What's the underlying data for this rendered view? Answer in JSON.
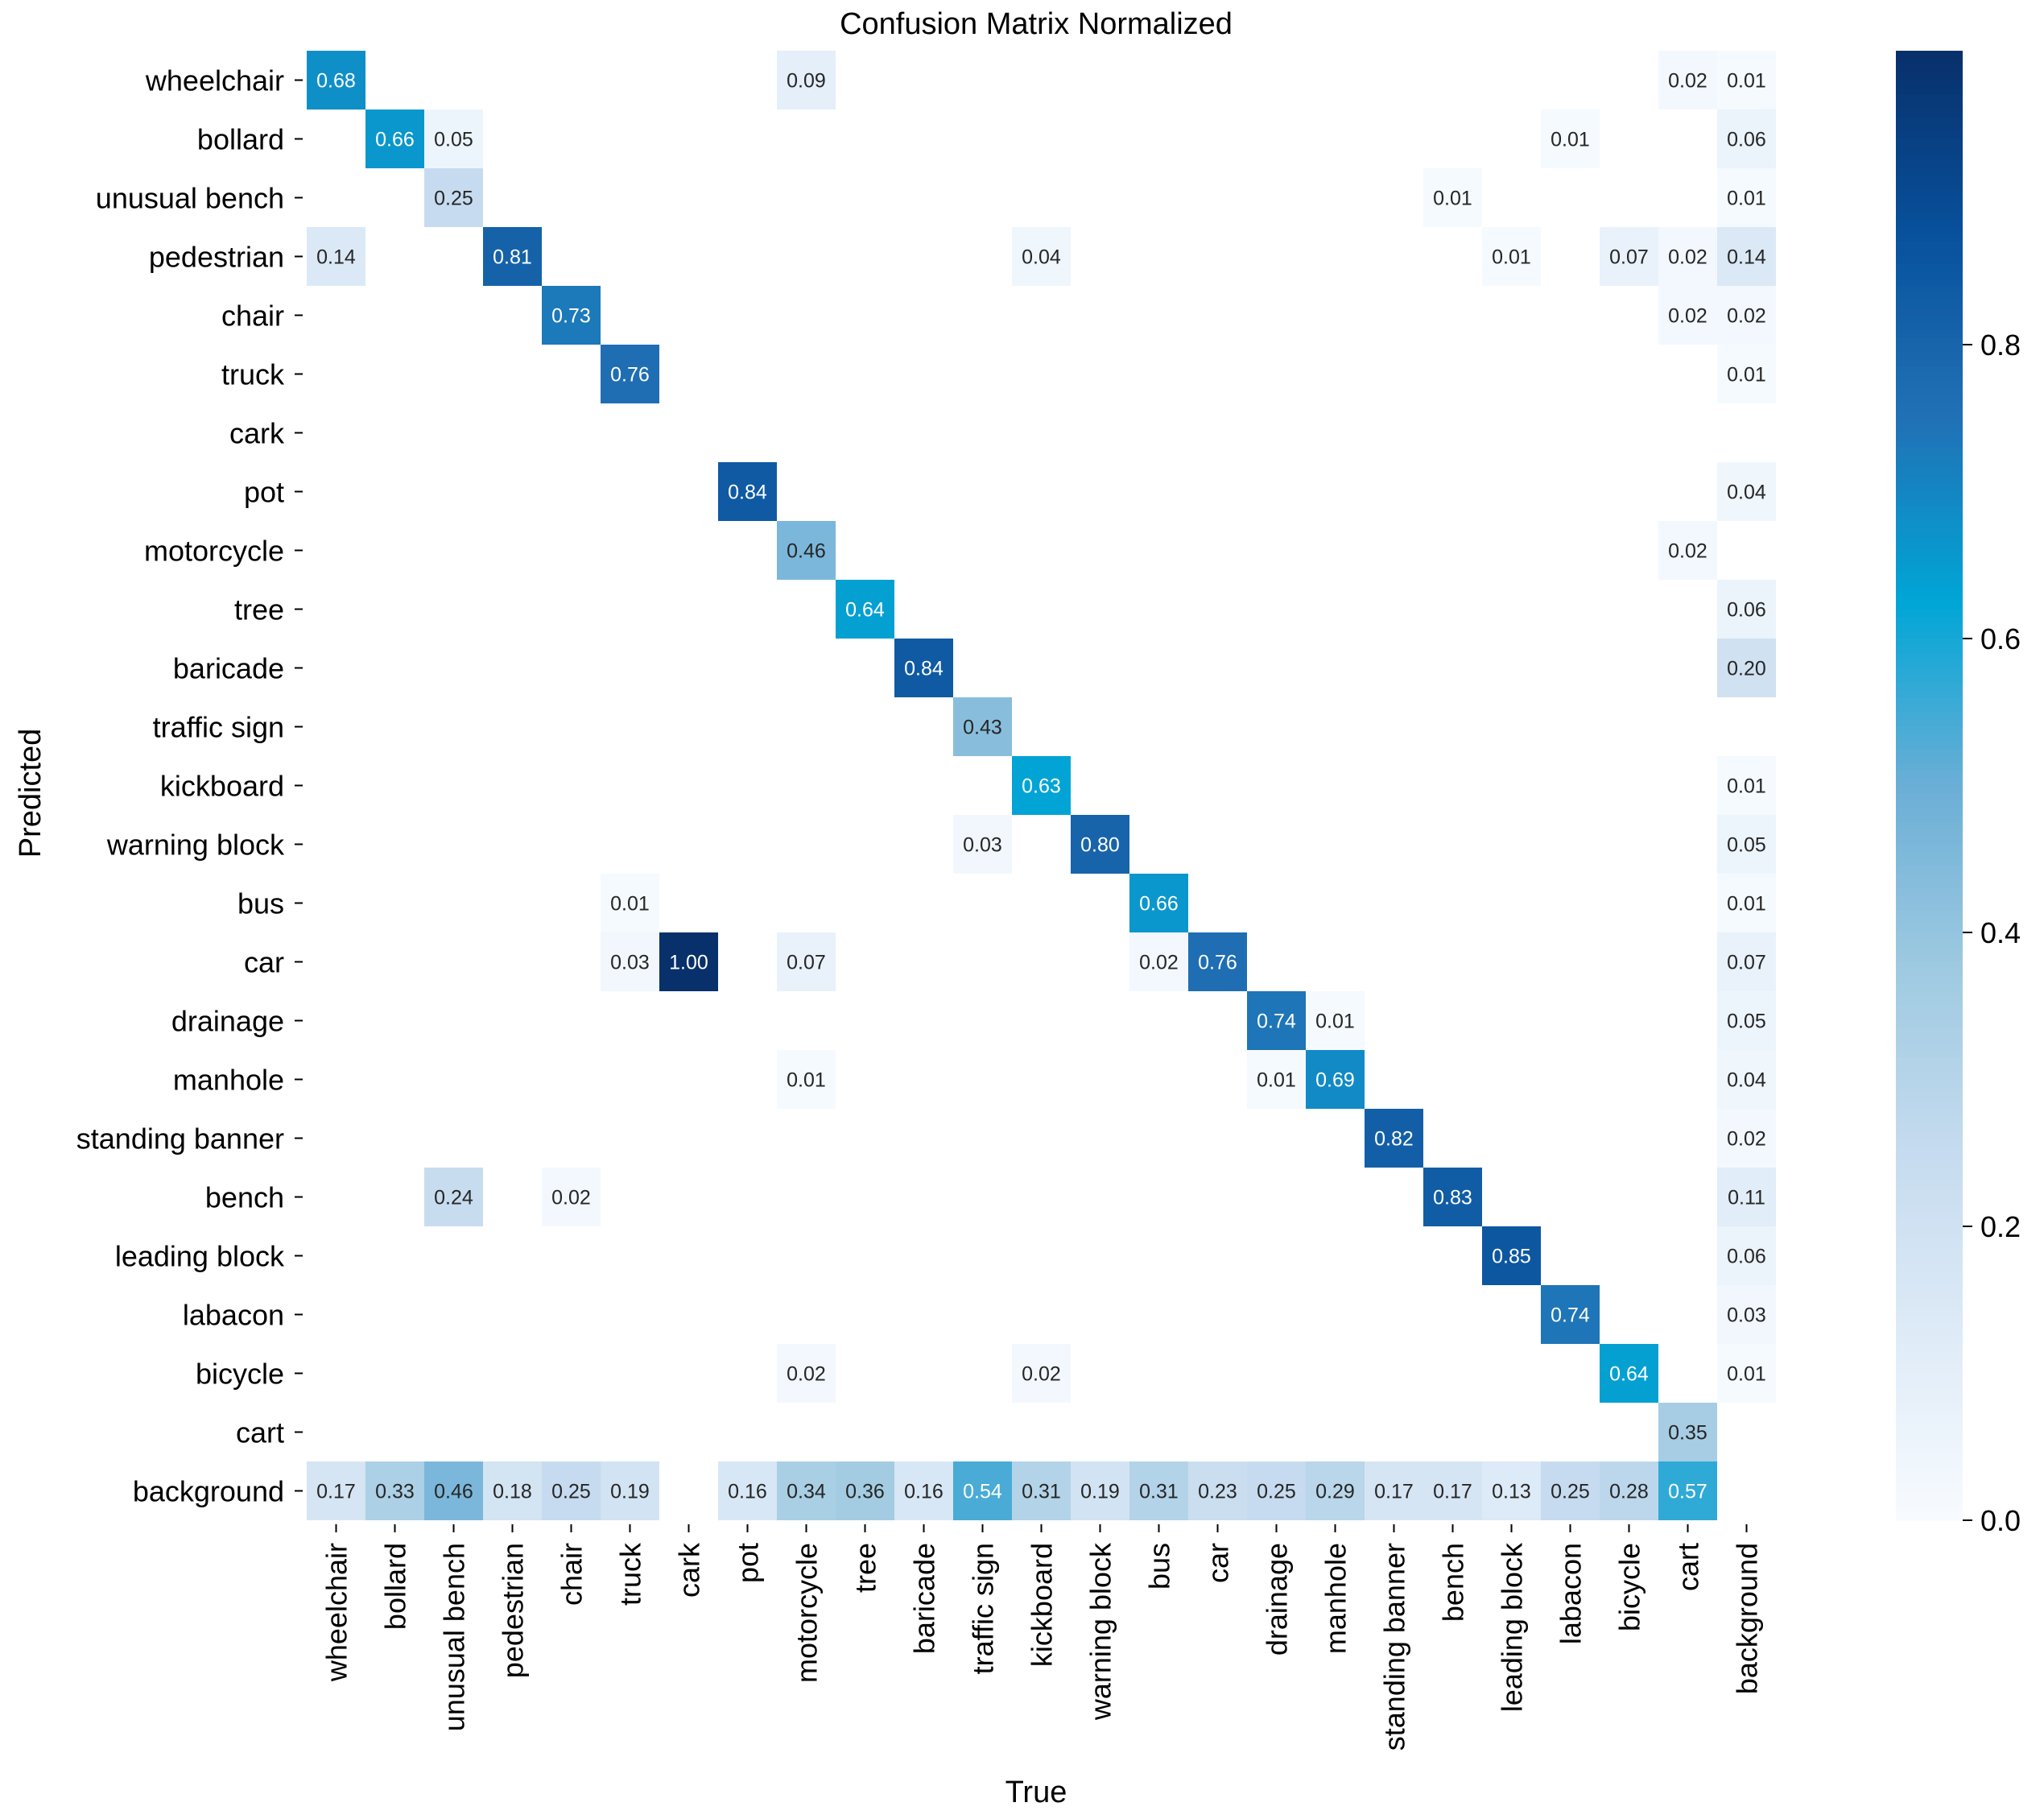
{
  "chart_data": {
    "type": "heatmap",
    "title": "Confusion Matrix Normalized",
    "xlabel": "True",
    "ylabel": "Predicted",
    "labels": [
      "wheelchair",
      "bollard",
      "unusual bench",
      "pedestrian",
      "chair",
      "truck",
      "cark",
      "pot",
      "motorcycle",
      "tree",
      "baricade",
      "traffic sign",
      "kickboard",
      "warning block",
      "bus",
      "car",
      "drainage",
      "manhole",
      "standing banner",
      "bench",
      "leading block",
      "labacon",
      "bicycle",
      "cart",
      "background"
    ],
    "cells": [
      {
        "row": 0,
        "col": 0,
        "value": 0.68
      },
      {
        "row": 0,
        "col": 8,
        "value": 0.09
      },
      {
        "row": 0,
        "col": 23,
        "value": 0.02
      },
      {
        "row": 0,
        "col": 24,
        "value": 0.01
      },
      {
        "row": 1,
        "col": 1,
        "value": 0.66
      },
      {
        "row": 1,
        "col": 2,
        "value": 0.05
      },
      {
        "row": 1,
        "col": 21,
        "value": 0.01
      },
      {
        "row": 1,
        "col": 24,
        "value": 0.06
      },
      {
        "row": 2,
        "col": 2,
        "value": 0.25
      },
      {
        "row": 2,
        "col": 19,
        "value": 0.01
      },
      {
        "row": 2,
        "col": 24,
        "value": 0.01
      },
      {
        "row": 3,
        "col": 0,
        "value": 0.14
      },
      {
        "row": 3,
        "col": 3,
        "value": 0.81
      },
      {
        "row": 3,
        "col": 12,
        "value": 0.04
      },
      {
        "row": 3,
        "col": 20,
        "value": 0.01
      },
      {
        "row": 3,
        "col": 22,
        "value": 0.07
      },
      {
        "row": 3,
        "col": 23,
        "value": 0.02
      },
      {
        "row": 3,
        "col": 24,
        "value": 0.14
      },
      {
        "row": 4,
        "col": 4,
        "value": 0.73
      },
      {
        "row": 4,
        "col": 23,
        "value": 0.02
      },
      {
        "row": 4,
        "col": 24,
        "value": 0.02
      },
      {
        "row": 5,
        "col": 5,
        "value": 0.76
      },
      {
        "row": 5,
        "col": 24,
        "value": 0.01
      },
      {
        "row": 7,
        "col": 7,
        "value": 0.84
      },
      {
        "row": 7,
        "col": 24,
        "value": 0.04
      },
      {
        "row": 8,
        "col": 8,
        "value": 0.46
      },
      {
        "row": 8,
        "col": 23,
        "value": 0.02
      },
      {
        "row": 9,
        "col": 9,
        "value": 0.64
      },
      {
        "row": 9,
        "col": 24,
        "value": 0.06
      },
      {
        "row": 10,
        "col": 10,
        "value": 0.84
      },
      {
        "row": 10,
        "col": 24,
        "value": 0.2
      },
      {
        "row": 11,
        "col": 11,
        "value": 0.43
      },
      {
        "row": 12,
        "col": 12,
        "value": 0.63
      },
      {
        "row": 12,
        "col": 24,
        "value": 0.01
      },
      {
        "row": 13,
        "col": 11,
        "value": 0.03
      },
      {
        "row": 13,
        "col": 13,
        "value": 0.8
      },
      {
        "row": 13,
        "col": 24,
        "value": 0.05
      },
      {
        "row": 14,
        "col": 5,
        "value": 0.01
      },
      {
        "row": 14,
        "col": 14,
        "value": 0.66
      },
      {
        "row": 14,
        "col": 24,
        "value": 0.01
      },
      {
        "row": 15,
        "col": 5,
        "value": 0.03
      },
      {
        "row": 15,
        "col": 6,
        "value": 1.0
      },
      {
        "row": 15,
        "col": 8,
        "value": 0.07
      },
      {
        "row": 15,
        "col": 14,
        "value": 0.02
      },
      {
        "row": 15,
        "col": 15,
        "value": 0.76
      },
      {
        "row": 15,
        "col": 24,
        "value": 0.07
      },
      {
        "row": 16,
        "col": 16,
        "value": 0.74
      },
      {
        "row": 16,
        "col": 17,
        "value": 0.01
      },
      {
        "row": 16,
        "col": 24,
        "value": 0.05
      },
      {
        "row": 17,
        "col": 8,
        "value": 0.01
      },
      {
        "row": 17,
        "col": 16,
        "value": 0.01
      },
      {
        "row": 17,
        "col": 17,
        "value": 0.69
      },
      {
        "row": 17,
        "col": 24,
        "value": 0.04
      },
      {
        "row": 18,
        "col": 18,
        "value": 0.82
      },
      {
        "row": 18,
        "col": 24,
        "value": 0.02
      },
      {
        "row": 19,
        "col": 2,
        "value": 0.24
      },
      {
        "row": 19,
        "col": 4,
        "value": 0.02
      },
      {
        "row": 19,
        "col": 19,
        "value": 0.83
      },
      {
        "row": 19,
        "col": 24,
        "value": 0.11
      },
      {
        "row": 20,
        "col": 20,
        "value": 0.85
      },
      {
        "row": 20,
        "col": 24,
        "value": 0.06
      },
      {
        "row": 21,
        "col": 21,
        "value": 0.74
      },
      {
        "row": 21,
        "col": 24,
        "value": 0.03
      },
      {
        "row": 22,
        "col": 8,
        "value": 0.02
      },
      {
        "row": 22,
        "col": 12,
        "value": 0.02
      },
      {
        "row": 22,
        "col": 22,
        "value": 0.64
      },
      {
        "row": 22,
        "col": 24,
        "value": 0.01
      },
      {
        "row": 23,
        "col": 23,
        "value": 0.35
      },
      {
        "row": 24,
        "col": 0,
        "value": 0.17
      },
      {
        "row": 24,
        "col": 1,
        "value": 0.33
      },
      {
        "row": 24,
        "col": 2,
        "value": 0.46
      },
      {
        "row": 24,
        "col": 3,
        "value": 0.18
      },
      {
        "row": 24,
        "col": 4,
        "value": 0.25
      },
      {
        "row": 24,
        "col": 5,
        "value": 0.19
      },
      {
        "row": 24,
        "col": 7,
        "value": 0.16
      },
      {
        "row": 24,
        "col": 8,
        "value": 0.34
      },
      {
        "row": 24,
        "col": 9,
        "value": 0.36
      },
      {
        "row": 24,
        "col": 10,
        "value": 0.16
      },
      {
        "row": 24,
        "col": 11,
        "value": 0.54
      },
      {
        "row": 24,
        "col": 12,
        "value": 0.31
      },
      {
        "row": 24,
        "col": 13,
        "value": 0.19
      },
      {
        "row": 24,
        "col": 14,
        "value": 0.31
      },
      {
        "row": 24,
        "col": 15,
        "value": 0.23
      },
      {
        "row": 24,
        "col": 16,
        "value": 0.25
      },
      {
        "row": 24,
        "col": 17,
        "value": 0.29
      },
      {
        "row": 24,
        "col": 18,
        "value": 0.17
      },
      {
        "row": 24,
        "col": 19,
        "value": 0.17
      },
      {
        "row": 24,
        "col": 20,
        "value": 0.13
      },
      {
        "row": 24,
        "col": 21,
        "value": 0.25
      },
      {
        "row": 24,
        "col": 22,
        "value": 0.28
      },
      {
        "row": 24,
        "col": 23,
        "value": 0.57
      }
    ],
    "colorbar": {
      "range": [
        0,
        1.0
      ],
      "ticks": [
        0.0,
        0.2,
        0.4,
        0.6,
        0.8
      ],
      "tick_labels": [
        "0.0",
        "0.2",
        "0.4",
        "0.6",
        "0.8"
      ]
    },
    "colormap": [
      "#f7fbff",
      "#deebf7",
      "#c6dbef",
      "#9ecae1",
      "#6baed6",
      "#00a6d6",
      "#2171b5",
      "#08519c",
      "#08306b"
    ]
  }
}
